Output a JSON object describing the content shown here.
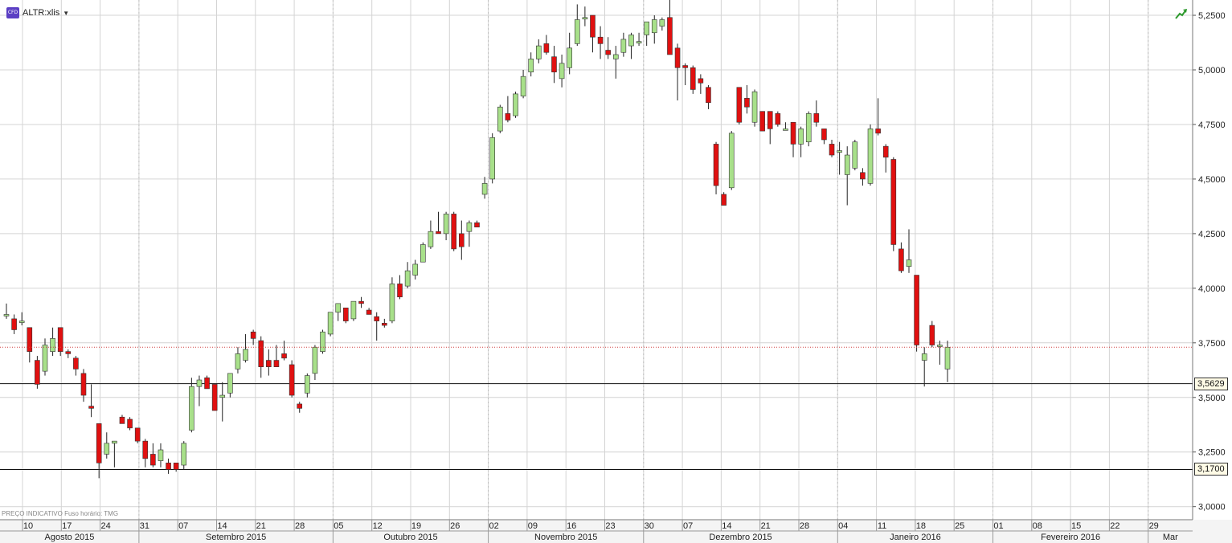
{
  "header": {
    "badge": "CFD",
    "symbol": "ALTR:xlis",
    "footnote": "PREÇO INDICATIVO   Fuso horário: TMG",
    "trend_icon": "trend-up-icon"
  },
  "chart_data": {
    "type": "candlestick",
    "ylim": [
      2.94,
      5.32
    ],
    "y_ticks": [
      "5,2500",
      "5,0000",
      "4,7500",
      "4,5000",
      "4,2500",
      "4,0000",
      "3,7500",
      "3,5000",
      "3,2500",
      "3,0000"
    ],
    "y_tick_values": [
      5.25,
      5.0,
      4.75,
      4.5,
      4.25,
      4.0,
      3.75,
      3.5,
      3.25,
      3.0
    ],
    "horizontal_lines": [
      {
        "label": "3,5629",
        "value": 3.5629
      },
      {
        "label": "3,1700",
        "value": 3.17
      }
    ],
    "current_price": 3.73,
    "week_labels": [
      "10",
      "17",
      "24",
      "31",
      "07",
      "14",
      "21",
      "28",
      "05",
      "12",
      "19",
      "26",
      "02",
      "09",
      "16",
      "23",
      "30",
      "07",
      "14",
      "21",
      "28",
      "04",
      "11",
      "18",
      "25",
      "01",
      "08",
      "15",
      "22",
      "29"
    ],
    "month_labels": [
      "Agosto 2015",
      "Setembro 2015",
      "Outubro 2015",
      "Novembro 2015",
      "Dezembro 2015",
      "Janeiro 2016",
      "Fevereiro 2016",
      "Mar"
    ],
    "colors": {
      "up": "#a8e08a",
      "down": "#e01010",
      "grid": "#d4d4d4",
      "current": "#d04040"
    },
    "candles": [
      {
        "o": 3.88,
        "h": 3.93,
        "l": 3.86,
        "c": 3.88
      },
      {
        "o": 3.86,
        "h": 3.88,
        "l": 3.79,
        "c": 3.81
      },
      {
        "o": 3.85,
        "h": 3.89,
        "l": 3.83,
        "c": 3.85
      },
      {
        "o": 3.82,
        "h": 3.82,
        "l": 3.66,
        "c": 3.71
      },
      {
        "o": 3.67,
        "h": 3.69,
        "l": 3.54,
        "c": 3.56
      },
      {
        "o": 3.62,
        "h": 3.77,
        "l": 3.6,
        "c": 3.74
      },
      {
        "o": 3.71,
        "h": 3.82,
        "l": 3.69,
        "c": 3.77
      },
      {
        "o": 3.82,
        "h": 3.82,
        "l": 3.69,
        "c": 3.71
      },
      {
        "o": 3.71,
        "h": 3.72,
        "l": 3.68,
        "c": 3.7
      },
      {
        "o": 3.68,
        "h": 3.69,
        "l": 3.6,
        "c": 3.63
      },
      {
        "o": 3.61,
        "h": 3.63,
        "l": 3.48,
        "c": 3.51
      },
      {
        "o": 3.46,
        "h": 3.56,
        "l": 3.41,
        "c": 3.45
      },
      {
        "o": 3.38,
        "h": 3.38,
        "l": 3.13,
        "c": 3.2
      },
      {
        "o": 3.24,
        "h": 3.34,
        "l": 3.22,
        "c": 3.29
      },
      {
        "o": 3.29,
        "h": 3.3,
        "l": 3.18,
        "c": 3.3
      },
      {
        "o": 3.41,
        "h": 3.42,
        "l": 3.39,
        "c": 3.38
      },
      {
        "o": 3.4,
        "h": 3.41,
        "l": 3.35,
        "c": 3.36
      },
      {
        "o": 3.36,
        "h": 3.36,
        "l": 3.29,
        "c": 3.3
      },
      {
        "o": 3.3,
        "h": 3.31,
        "l": 3.18,
        "c": 3.22
      },
      {
        "o": 3.24,
        "h": 3.29,
        "l": 3.18,
        "c": 3.19
      },
      {
        "o": 3.21,
        "h": 3.29,
        "l": 3.18,
        "c": 3.26
      },
      {
        "o": 3.2,
        "h": 3.22,
        "l": 3.15,
        "c": 3.17
      },
      {
        "o": 3.2,
        "h": 3.2,
        "l": 3.16,
        "c": 3.17
      },
      {
        "o": 3.19,
        "h": 3.3,
        "l": 3.17,
        "c": 3.29
      },
      {
        "o": 3.35,
        "h": 3.59,
        "l": 3.34,
        "c": 3.55
      },
      {
        "o": 3.55,
        "h": 3.6,
        "l": 3.46,
        "c": 3.58
      },
      {
        "o": 3.59,
        "h": 3.6,
        "l": 3.55,
        "c": 3.54
      },
      {
        "o": 3.56,
        "h": 3.56,
        "l": 3.44,
        "c": 3.44
      },
      {
        "o": 3.5,
        "h": 3.57,
        "l": 3.39,
        "c": 3.51
      },
      {
        "o": 3.52,
        "h": 3.61,
        "l": 3.5,
        "c": 3.61
      },
      {
        "o": 3.63,
        "h": 3.73,
        "l": 3.61,
        "c": 3.7
      },
      {
        "o": 3.67,
        "h": 3.79,
        "l": 3.66,
        "c": 3.72
      },
      {
        "o": 3.8,
        "h": 3.81,
        "l": 3.74,
        "c": 3.77
      },
      {
        "o": 3.76,
        "h": 3.78,
        "l": 3.59,
        "c": 3.64
      },
      {
        "o": 3.67,
        "h": 3.72,
        "l": 3.6,
        "c": 3.64
      },
      {
        "o": 3.67,
        "h": 3.74,
        "l": 3.64,
        "c": 3.64
      },
      {
        "o": 3.7,
        "h": 3.76,
        "l": 3.67,
        "c": 3.68
      },
      {
        "o": 3.65,
        "h": 3.67,
        "l": 3.5,
        "c": 3.51
      },
      {
        "o": 3.47,
        "h": 3.48,
        "l": 3.43,
        "c": 3.45
      },
      {
        "o": 3.52,
        "h": 3.61,
        "l": 3.5,
        "c": 3.6
      },
      {
        "o": 3.61,
        "h": 3.74,
        "l": 3.58,
        "c": 3.73
      },
      {
        "o": 3.71,
        "h": 3.81,
        "l": 3.7,
        "c": 3.8
      },
      {
        "o": 3.79,
        "h": 3.89,
        "l": 3.78,
        "c": 3.89
      },
      {
        "o": 3.89,
        "h": 3.93,
        "l": 3.85,
        "c": 3.93
      },
      {
        "o": 3.91,
        "h": 3.91,
        "l": 3.84,
        "c": 3.85
      },
      {
        "o": 3.86,
        "h": 3.94,
        "l": 3.85,
        "c": 3.94
      },
      {
        "o": 3.94,
        "h": 3.96,
        "l": 3.91,
        "c": 3.93
      },
      {
        "o": 3.9,
        "h": 3.91,
        "l": 3.88,
        "c": 3.88
      },
      {
        "o": 3.87,
        "h": 3.89,
        "l": 3.76,
        "c": 3.85
      },
      {
        "o": 3.84,
        "h": 3.86,
        "l": 3.82,
        "c": 3.83
      },
      {
        "o": 3.85,
        "h": 4.05,
        "l": 3.84,
        "c": 4.02
      },
      {
        "o": 4.02,
        "h": 4.06,
        "l": 3.95,
        "c": 3.96
      },
      {
        "o": 4.01,
        "h": 4.12,
        "l": 4.0,
        "c": 4.08
      },
      {
        "o": 4.06,
        "h": 4.13,
        "l": 4.04,
        "c": 4.11
      },
      {
        "o": 4.12,
        "h": 4.21,
        "l": 4.12,
        "c": 4.2
      },
      {
        "o": 4.19,
        "h": 4.31,
        "l": 4.18,
        "c": 4.26
      },
      {
        "o": 4.26,
        "h": 4.35,
        "l": 4.25,
        "c": 4.25
      },
      {
        "o": 4.25,
        "h": 4.35,
        "l": 4.22,
        "c": 4.34
      },
      {
        "o": 4.34,
        "h": 4.35,
        "l": 4.17,
        "c": 4.18
      },
      {
        "o": 4.25,
        "h": 4.31,
        "l": 4.13,
        "c": 4.19
      },
      {
        "o": 4.26,
        "h": 4.31,
        "l": 4.19,
        "c": 4.3
      },
      {
        "o": 4.3,
        "h": 4.31,
        "l": 4.28,
        "c": 4.28
      },
      {
        "o": 4.43,
        "h": 4.51,
        "l": 4.41,
        "c": 4.48
      },
      {
        "o": 4.5,
        "h": 4.71,
        "l": 4.48,
        "c": 4.69
      },
      {
        "o": 4.72,
        "h": 4.84,
        "l": 4.71,
        "c": 4.83
      },
      {
        "o": 4.8,
        "h": 4.88,
        "l": 4.76,
        "c": 4.77
      },
      {
        "o": 4.79,
        "h": 4.9,
        "l": 4.78,
        "c": 4.89
      },
      {
        "o": 4.88,
        "h": 5.0,
        "l": 4.87,
        "c": 4.97
      },
      {
        "o": 4.99,
        "h": 5.08,
        "l": 4.97,
        "c": 5.05
      },
      {
        "o": 5.05,
        "h": 5.14,
        "l": 5.03,
        "c": 5.11
      },
      {
        "o": 5.12,
        "h": 5.16,
        "l": 5.07,
        "c": 5.08
      },
      {
        "o": 5.06,
        "h": 5.11,
        "l": 4.94,
        "c": 4.99
      },
      {
        "o": 4.96,
        "h": 5.07,
        "l": 4.92,
        "c": 5.03
      },
      {
        "o": 5.01,
        "h": 5.17,
        "l": 4.98,
        "c": 5.1
      },
      {
        "o": 5.12,
        "h": 5.3,
        "l": 5.11,
        "c": 5.23
      },
      {
        "o": 5.24,
        "h": 5.29,
        "l": 5.2,
        "c": 5.24
      },
      {
        "o": 5.25,
        "h": 5.25,
        "l": 5.08,
        "c": 5.15
      },
      {
        "o": 5.15,
        "h": 5.2,
        "l": 5.05,
        "c": 5.12
      },
      {
        "o": 5.09,
        "h": 5.15,
        "l": 5.05,
        "c": 5.07
      },
      {
        "o": 5.05,
        "h": 5.11,
        "l": 4.96,
        "c": 5.07
      },
      {
        "o": 5.08,
        "h": 5.17,
        "l": 5.06,
        "c": 5.14
      },
      {
        "o": 5.11,
        "h": 5.17,
        "l": 5.05,
        "c": 5.16
      },
      {
        "o": 5.13,
        "h": 5.17,
        "l": 5.11,
        "c": 5.13
      },
      {
        "o": 5.16,
        "h": 5.22,
        "l": 5.11,
        "c": 5.22
      },
      {
        "o": 5.17,
        "h": 5.25,
        "l": 5.12,
        "c": 5.23
      },
      {
        "o": 5.2,
        "h": 5.24,
        "l": 5.18,
        "c": 5.23
      },
      {
        "o": 5.24,
        "h": 5.32,
        "l": 5.09,
        "c": 5.07
      },
      {
        "o": 5.1,
        "h": 5.12,
        "l": 4.86,
        "c": 5.01
      },
      {
        "o": 5.02,
        "h": 5.03,
        "l": 4.93,
        "c": 5.01
      },
      {
        "o": 5.01,
        "h": 5.02,
        "l": 4.89,
        "c": 4.91
      },
      {
        "o": 4.96,
        "h": 4.98,
        "l": 4.89,
        "c": 4.94
      },
      {
        "o": 4.92,
        "h": 4.93,
        "l": 4.82,
        "c": 4.85
      },
      {
        "o": 4.66,
        "h": 4.67,
        "l": 4.43,
        "c": 4.47
      },
      {
        "o": 4.43,
        "h": 4.44,
        "l": 4.38,
        "c": 4.38
      },
      {
        "o": 4.46,
        "h": 4.72,
        "l": 4.45,
        "c": 4.71
      },
      {
        "o": 4.92,
        "h": 4.92,
        "l": 4.75,
        "c": 4.76
      },
      {
        "o": 4.87,
        "h": 4.93,
        "l": 4.8,
        "c": 4.83
      },
      {
        "o": 4.76,
        "h": 4.91,
        "l": 4.74,
        "c": 4.9
      },
      {
        "o": 4.81,
        "h": 4.81,
        "l": 4.72,
        "c": 4.72
      },
      {
        "o": 4.81,
        "h": 4.81,
        "l": 4.66,
        "c": 4.73
      },
      {
        "o": 4.8,
        "h": 4.81,
        "l": 4.74,
        "c": 4.75
      },
      {
        "o": 4.73,
        "h": 4.76,
        "l": 4.73,
        "c": 4.73
      },
      {
        "o": 4.76,
        "h": 4.76,
        "l": 4.6,
        "c": 4.66
      },
      {
        "o": 4.66,
        "h": 4.74,
        "l": 4.6,
        "c": 4.73
      },
      {
        "o": 4.67,
        "h": 4.81,
        "l": 4.65,
        "c": 4.8
      },
      {
        "o": 4.8,
        "h": 4.86,
        "l": 4.74,
        "c": 4.76
      },
      {
        "o": 4.73,
        "h": 4.73,
        "l": 4.66,
        "c": 4.68
      },
      {
        "o": 4.66,
        "h": 4.68,
        "l": 4.6,
        "c": 4.61
      },
      {
        "o": 4.63,
        "h": 4.67,
        "l": 4.52,
        "c": 4.63
      },
      {
        "o": 4.52,
        "h": 4.65,
        "l": 4.38,
        "c": 4.61
      },
      {
        "o": 4.55,
        "h": 4.68,
        "l": 4.54,
        "c": 4.67
      },
      {
        "o": 4.53,
        "h": 4.55,
        "l": 4.47,
        "c": 4.5
      },
      {
        "o": 4.48,
        "h": 4.75,
        "l": 4.47,
        "c": 4.73
      },
      {
        "o": 4.73,
        "h": 4.87,
        "l": 4.7,
        "c": 4.71
      },
      {
        "o": 4.65,
        "h": 4.66,
        "l": 4.53,
        "c": 4.6
      },
      {
        "o": 4.59,
        "h": 4.6,
        "l": 4.17,
        "c": 4.2
      },
      {
        "o": 4.18,
        "h": 4.21,
        "l": 4.07,
        "c": 4.08
      },
      {
        "o": 4.1,
        "h": 4.27,
        "l": 4.07,
        "c": 4.13
      },
      {
        "o": 4.06,
        "h": 4.06,
        "l": 3.71,
        "c": 3.74
      },
      {
        "o": 3.67,
        "h": 3.73,
        "l": 3.55,
        "c": 3.7
      },
      {
        "o": 3.83,
        "h": 3.85,
        "l": 3.73,
        "c": 3.74
      },
      {
        "o": 3.74,
        "h": 3.76,
        "l": 3.65,
        "c": 3.74
      },
      {
        "o": 3.63,
        "h": 3.76,
        "l": 3.57,
        "c": 3.73
      }
    ]
  }
}
